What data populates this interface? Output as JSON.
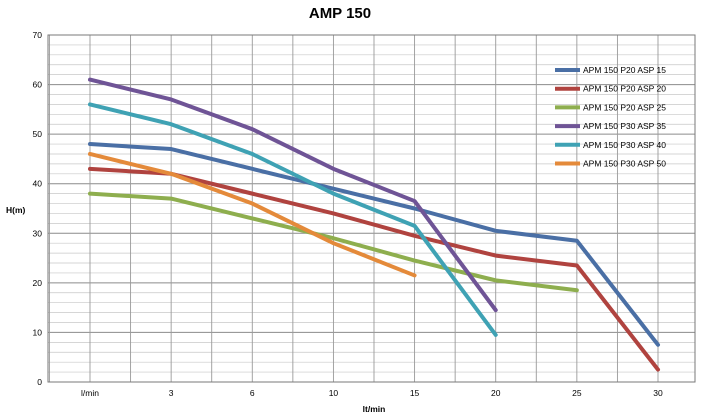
{
  "chart_data": {
    "type": "line",
    "title": "AMP 150",
    "xlabel": "lt/min",
    "ylabel": "H(m)",
    "categories": [
      "l/min",
      "3",
      "6",
      "10",
      "15",
      "20",
      "25",
      "30"
    ],
    "ylim": [
      0,
      70
    ],
    "yticks": [
      0,
      10,
      20,
      30,
      40,
      50,
      60,
      70
    ],
    "grid": true,
    "legend_position": "right",
    "series": [
      {
        "name": "APM 150 P20 ASP 15",
        "color": "#4a6fa5",
        "values": [
          48,
          47,
          43,
          39,
          35,
          30.5,
          28.5,
          7.5
        ]
      },
      {
        "name": "APM 150 P20 ASP 20",
        "color": "#b0433f",
        "values": [
          43,
          42,
          38,
          34,
          29.5,
          25.5,
          23.5,
          2.5
        ]
      },
      {
        "name": "APM 150 P20 ASP 25",
        "color": "#8eae4e",
        "values": [
          38,
          37,
          33,
          29,
          24.5,
          20.5,
          18.5,
          null
        ]
      },
      {
        "name": "APM 150 P30 ASP 35",
        "color": "#6f5496",
        "values": [
          61,
          57,
          51,
          43,
          36.5,
          14.5,
          null,
          null
        ]
      },
      {
        "name": "APM 150 P30 ASP 40",
        "color": "#3fa2b4",
        "values": [
          56,
          52,
          46,
          38,
          31.5,
          9.5,
          null,
          null
        ]
      },
      {
        "name": "APM 150 P30 ASP 50",
        "color": "#e48a3a",
        "values": [
          46,
          42,
          36,
          28,
          21.5,
          null,
          null,
          null
        ]
      }
    ]
  }
}
